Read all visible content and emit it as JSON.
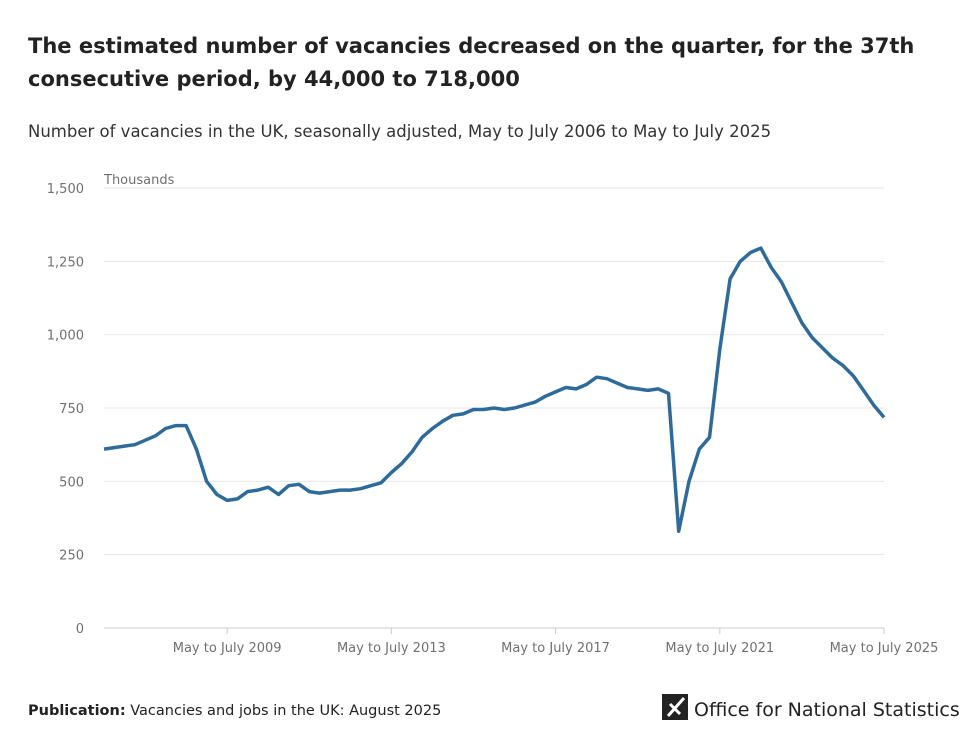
{
  "chart_data": {
    "type": "line",
    "title": "The estimated number of vacancies decreased on the quarter, for the 37th consecutive period, by 44,000 to 718,000",
    "subtitle": "Number of vacancies in the UK, seasonally adjusted, May to July 2006 to May to July 2025",
    "y_axis_label": "Thousands",
    "categories": [
      null,
      null,
      null,
      null,
      null,
      null,
      null,
      null,
      null,
      null,
      null,
      null,
      "May to July 2009",
      null,
      null,
      null,
      null,
      null,
      null,
      null,
      null,
      null,
      null,
      null,
      null,
      null,
      null,
      null,
      "May to July 2013",
      null,
      null,
      null,
      null,
      null,
      null,
      null,
      null,
      null,
      null,
      null,
      null,
      null,
      null,
      null,
      "May to July 2017",
      null,
      null,
      null,
      null,
      null,
      null,
      null,
      null,
      null,
      null,
      null,
      null,
      null,
      null,
      null,
      "May to July 2021",
      null,
      null,
      null,
      null,
      null,
      null,
      null,
      null,
      null,
      null,
      null,
      null,
      null,
      null,
      null,
      "May to July 2025"
    ],
    "series": [
      {
        "name": "Vacancies",
        "color": "#2e6b9a",
        "values": [
          610,
          615,
          620,
          625,
          640,
          655,
          680,
          690,
          690,
          610,
          500,
          455,
          435,
          440,
          465,
          470,
          480,
          455,
          485,
          490,
          465,
          460,
          465,
          470,
          470,
          475,
          485,
          495,
          530,
          560,
          600,
          650,
          680,
          705,
          725,
          730,
          745,
          745,
          750,
          745,
          750,
          760,
          770,
          790,
          805,
          820,
          815,
          830,
          855,
          850,
          835,
          820,
          815,
          810,
          815,
          800,
          330,
          500,
          610,
          650,
          950,
          1190,
          1250,
          1280,
          1295,
          1230,
          1180,
          1110,
          1040,
          990,
          955,
          920,
          895,
          860,
          810,
          760,
          718
        ]
      }
    ],
    "ylim": [
      0,
      1500
    ],
    "yticks": [
      0,
      250,
      500,
      750,
      {
        "value": 1000,
        "label": "1,000"
      },
      {
        "value": 1250,
        "label": "1,250"
      },
      {
        "value": 1500,
        "label": "1,500"
      }
    ],
    "grid": true,
    "footer": {
      "label": "Publication:",
      "text": "Vacancies and jobs in the UK: August 2025"
    },
    "logo": "Office for National Statistics"
  }
}
